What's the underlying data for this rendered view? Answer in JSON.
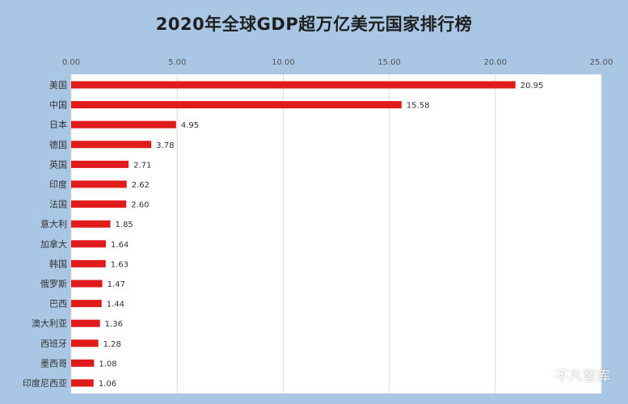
{
  "colors": {
    "background": "#a9c7e4",
    "plot_background": "#ffffff",
    "bar": "#e01b1b",
    "grid": "#dcdcdc",
    "text": "#333333"
  },
  "watermark": {
    "text": "不凡智库",
    "icon": "wechat-icon"
  },
  "chart_data": {
    "type": "bar",
    "orientation": "horizontal",
    "title": "2020年全球GDP超万亿美元国家排行榜",
    "xlabel": "",
    "ylabel": "",
    "xlim": [
      0,
      25
    ],
    "x_ticks": [
      0,
      5,
      10,
      15,
      20,
      25
    ],
    "x_tick_labels": [
      "0.00",
      "5.00",
      "10.00",
      "15.00",
      "20.00",
      "25.00"
    ],
    "x_axis_position": "top",
    "grid": true,
    "legend": "none",
    "categories": [
      "美国",
      "中国",
      "日本",
      "德国",
      "英国",
      "印度",
      "法国",
      "意大利",
      "加拿大",
      "韩国",
      "俄罗斯",
      "巴西",
      "澳大利亚",
      "西班牙",
      "墨西哥",
      "印度尼西亚"
    ],
    "values": [
      20.95,
      15.58,
      4.95,
      3.78,
      2.71,
      2.62,
      2.6,
      1.85,
      1.64,
      1.63,
      1.47,
      1.44,
      1.36,
      1.28,
      1.08,
      1.06
    ],
    "value_labels": [
      "20.95",
      "15.58",
      "4.95",
      "3.78",
      "2.71",
      "2.62",
      "2.60",
      "1.85",
      "1.64",
      "1.63",
      "1.47",
      "1.44",
      "1.36",
      "1.28",
      "1.08",
      "1.06"
    ]
  }
}
